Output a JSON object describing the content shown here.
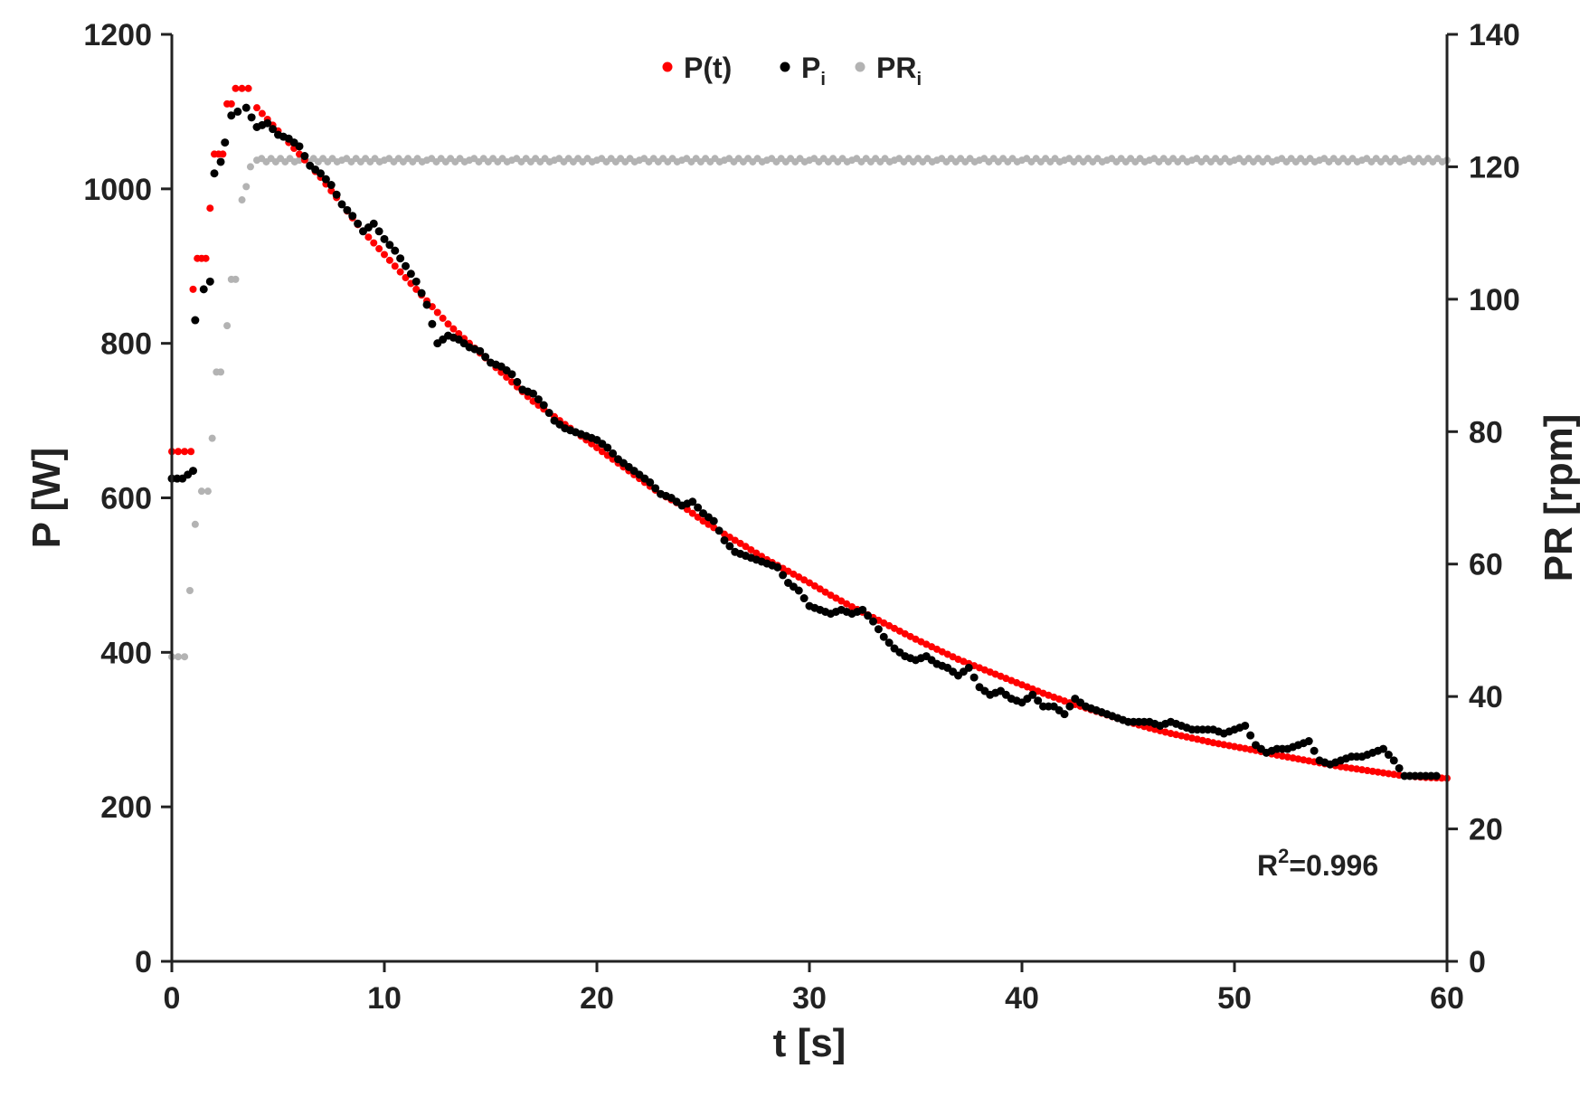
{
  "chart_data": {
    "type": "scatter",
    "title": "",
    "xlabel": "t [s]",
    "ylabel": "P [W]",
    "y2label": "PR [rpm]",
    "xlim": [
      0,
      60
    ],
    "ylim": [
      0,
      1200
    ],
    "y2lim": [
      0,
      140
    ],
    "x_ticks": [
      "0",
      "10",
      "20",
      "30",
      "40",
      "50",
      "60"
    ],
    "y_ticks": [
      "0",
      "200",
      "400",
      "600",
      "800",
      "1000",
      "1200"
    ],
    "y2_ticks": [
      "0",
      "20",
      "40",
      "60",
      "80",
      "100",
      "120",
      "140"
    ],
    "grid": false,
    "legend_position": "top-center",
    "annotation": {
      "prefix": "R",
      "sup": "2",
      "suffix": "=0.996"
    },
    "series": [
      {
        "name": "P(t)",
        "sub": "",
        "color": "#ff0000",
        "axis": "left",
        "marker_size": 4,
        "points": [
          [
            0,
            660
          ],
          [
            0.3,
            660
          ],
          [
            0.6,
            660
          ],
          [
            0.9,
            660
          ],
          [
            1.0,
            870
          ],
          [
            1.2,
            910
          ],
          [
            1.4,
            910
          ],
          [
            1.6,
            910
          ],
          [
            1.8,
            975
          ],
          [
            2.0,
            1045
          ],
          [
            2.2,
            1045
          ],
          [
            2.4,
            1045
          ],
          [
            2.6,
            1110
          ],
          [
            2.8,
            1110
          ],
          [
            3.0,
            1130
          ],
          [
            3.3,
            1130
          ],
          [
            3.6,
            1130
          ],
          [
            4,
            1105
          ],
          [
            5,
            1075
          ],
          [
            6,
            1045
          ],
          [
            7,
            1015
          ],
          [
            8,
            980
          ],
          [
            9,
            945
          ],
          [
            10,
            915
          ],
          [
            11,
            885
          ],
          [
            12,
            855
          ],
          [
            13,
            825
          ],
          [
            14,
            800
          ],
          [
            15,
            775
          ],
          [
            16,
            750
          ],
          [
            17,
            725
          ],
          [
            18,
            705
          ],
          [
            19,
            685
          ],
          [
            20,
            665
          ],
          [
            21,
            645
          ],
          [
            22,
            625
          ],
          [
            23,
            605
          ],
          [
            24,
            590
          ],
          [
            25,
            570
          ],
          [
            26,
            553
          ],
          [
            27,
            537
          ],
          [
            28,
            520
          ],
          [
            29,
            505
          ],
          [
            30,
            490
          ],
          [
            31,
            474
          ],
          [
            32,
            459
          ],
          [
            33,
            445
          ],
          [
            34,
            431
          ],
          [
            35,
            417
          ],
          [
            36,
            404
          ],
          [
            37,
            391
          ],
          [
            38,
            380
          ],
          [
            39,
            369
          ],
          [
            40,
            358
          ],
          [
            41,
            347
          ],
          [
            42,
            337
          ],
          [
            43,
            328
          ],
          [
            44,
            319
          ],
          [
            45,
            310
          ],
          [
            46,
            302
          ],
          [
            47,
            295
          ],
          [
            48,
            289
          ],
          [
            49,
            283
          ],
          [
            50,
            278
          ],
          [
            51,
            273
          ],
          [
            52,
            267
          ],
          [
            53,
            262
          ],
          [
            54,
            257
          ],
          [
            55,
            252
          ],
          [
            56,
            248
          ],
          [
            57,
            244
          ],
          [
            58,
            240
          ],
          [
            59,
            238
          ],
          [
            60,
            237
          ]
        ]
      },
      {
        "name": "P",
        "sub": "i",
        "color": "#000000",
        "axis": "left",
        "marker_size": 4.5,
        "points": [
          [
            0,
            625
          ],
          [
            0.5,
            625
          ],
          [
            1.0,
            635
          ],
          [
            1.1,
            830
          ],
          [
            1.5,
            870
          ],
          [
            1.8,
            880
          ],
          [
            2.0,
            1020
          ],
          [
            2.3,
            1035
          ],
          [
            2.5,
            1060
          ],
          [
            2.8,
            1095
          ],
          [
            3.1,
            1100
          ],
          [
            3.5,
            1105
          ],
          [
            4,
            1080
          ],
          [
            4.5,
            1085
          ],
          [
            5,
            1070
          ],
          [
            5.5,
            1065
          ],
          [
            6,
            1055
          ],
          [
            6.5,
            1030
          ],
          [
            7,
            1020
          ],
          [
            7.5,
            1005
          ],
          [
            8,
            980
          ],
          [
            8.5,
            965
          ],
          [
            9,
            945
          ],
          [
            9.5,
            955
          ],
          [
            10,
            935
          ],
          [
            10.5,
            920
          ],
          [
            11,
            900
          ],
          [
            11.5,
            880
          ],
          [
            12,
            850
          ],
          [
            12.5,
            800
          ],
          [
            13,
            810
          ],
          [
            13.5,
            805
          ],
          [
            14,
            795
          ],
          [
            14.5,
            790
          ],
          [
            15,
            775
          ],
          [
            15.5,
            770
          ],
          [
            16,
            760
          ],
          [
            16.5,
            740
          ],
          [
            17,
            735
          ],
          [
            17.5,
            720
          ],
          [
            18,
            700
          ],
          [
            18.5,
            690
          ],
          [
            19,
            685
          ],
          [
            19.5,
            680
          ],
          [
            20,
            675
          ],
          [
            20.5,
            665
          ],
          [
            21,
            650
          ],
          [
            21.5,
            640
          ],
          [
            22,
            630
          ],
          [
            22.5,
            620
          ],
          [
            23,
            605
          ],
          [
            23.5,
            600
          ],
          [
            24,
            590
          ],
          [
            24.5,
            595
          ],
          [
            25,
            580
          ],
          [
            25.5,
            570
          ],
          [
            26,
            545
          ],
          [
            26.5,
            530
          ],
          [
            27,
            525
          ],
          [
            27.5,
            520
          ],
          [
            28,
            515
          ],
          [
            28.5,
            510
          ],
          [
            29,
            490
          ],
          [
            29.5,
            480
          ],
          [
            30,
            460
          ],
          [
            30.5,
            455
          ],
          [
            31,
            450
          ],
          [
            31.5,
            455
          ],
          [
            32,
            450
          ],
          [
            32.5,
            455
          ],
          [
            33,
            440
          ],
          [
            33.5,
            420
          ],
          [
            34,
            405
          ],
          [
            34.5,
            395
          ],
          [
            35,
            390
          ],
          [
            35.5,
            395
          ],
          [
            36,
            385
          ],
          [
            36.5,
            380
          ],
          [
            37,
            370
          ],
          [
            37.5,
            380
          ],
          [
            38,
            355
          ],
          [
            38.5,
            345
          ],
          [
            39,
            350
          ],
          [
            39.5,
            340
          ],
          [
            40,
            335
          ],
          [
            40.5,
            345
          ],
          [
            41,
            330
          ],
          [
            41.5,
            330
          ],
          [
            42,
            320
          ],
          [
            42.5,
            340
          ],
          [
            43,
            330
          ],
          [
            43.5,
            325
          ],
          [
            44,
            320
          ],
          [
            44.5,
            315
          ],
          [
            45,
            310
          ],
          [
            45.5,
            310
          ],
          [
            46,
            310
          ],
          [
            46.5,
            305
          ],
          [
            47,
            310
          ],
          [
            47.5,
            305
          ],
          [
            48,
            300
          ],
          [
            48.5,
            300
          ],
          [
            49,
            300
          ],
          [
            49.5,
            295
          ],
          [
            50,
            300
          ],
          [
            50.5,
            305
          ],
          [
            51,
            280
          ],
          [
            51.5,
            270
          ],
          [
            52,
            275
          ],
          [
            52.5,
            275
          ],
          [
            53,
            280
          ],
          [
            53.5,
            285
          ],
          [
            54,
            260
          ],
          [
            54.5,
            255
          ],
          [
            55,
            260
          ],
          [
            55.5,
            265
          ],
          [
            56,
            265
          ],
          [
            56.5,
            270
          ],
          [
            57,
            275
          ],
          [
            57.5,
            260
          ],
          [
            58,
            240
          ],
          [
            58.5,
            240
          ],
          [
            59,
            240
          ],
          [
            59.5,
            240
          ]
        ]
      },
      {
        "name": "PR",
        "sub": "i",
        "color": "#b3b3b3",
        "axis": "right",
        "marker_size": 4,
        "points": [
          [
            0,
            46
          ],
          [
            0.3,
            46
          ],
          [
            0.6,
            46
          ],
          [
            1.1,
            66
          ],
          [
            1.4,
            71
          ],
          [
            1.7,
            71
          ],
          [
            1.9,
            79
          ],
          [
            2.1,
            89
          ],
          [
            2.3,
            89
          ],
          [
            2.6,
            96
          ],
          [
            2.8,
            103
          ],
          [
            3.0,
            103
          ],
          [
            3.3,
            115
          ],
          [
            3.5,
            117
          ],
          [
            3.7,
            120
          ],
          [
            4,
            121
          ],
          [
            6,
            121
          ],
          [
            8,
            121
          ],
          [
            10,
            121
          ],
          [
            12,
            121
          ],
          [
            14,
            121
          ],
          [
            16,
            121
          ],
          [
            18,
            121
          ],
          [
            20,
            121
          ],
          [
            22,
            121
          ],
          [
            24,
            121
          ],
          [
            26,
            121
          ],
          [
            28,
            121
          ],
          [
            30,
            121
          ],
          [
            32,
            121
          ],
          [
            34,
            121
          ],
          [
            36,
            121
          ],
          [
            38,
            121
          ],
          [
            40,
            121
          ],
          [
            42,
            121
          ],
          [
            44,
            121
          ],
          [
            46,
            121
          ],
          [
            48,
            121
          ],
          [
            50,
            121
          ],
          [
            52,
            121
          ],
          [
            54,
            121
          ],
          [
            56,
            121
          ],
          [
            58,
            121
          ],
          [
            60,
            121
          ]
        ]
      }
    ]
  }
}
